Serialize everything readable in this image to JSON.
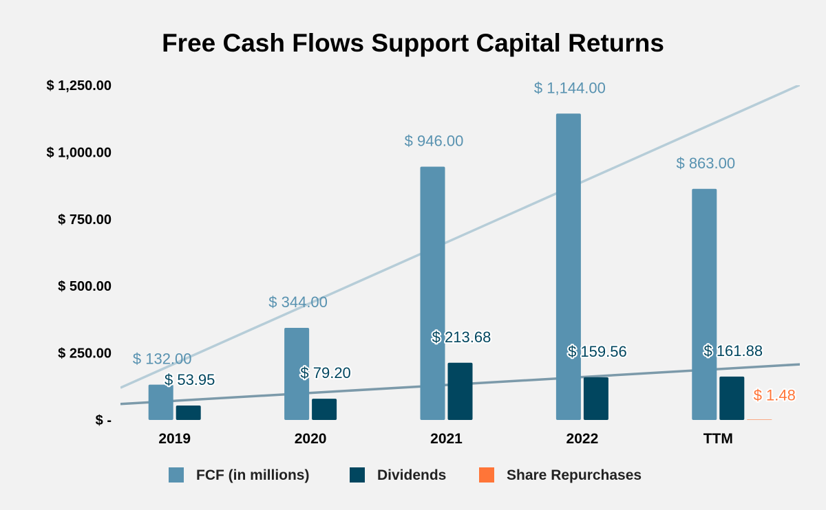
{
  "colors": {
    "background": "#f2f2f2",
    "fcf": "#5892b0",
    "dividends": "#01465f",
    "repurchases": "#ff7538",
    "fcf_trend": "#b6cdd8",
    "div_trend": "#7c9aaa"
  },
  "chart_data": {
    "type": "bar",
    "title": "Free Cash Flows Support Capital Returns",
    "categories": [
      "2019",
      "2020",
      "2021",
      "2022",
      "TTM"
    ],
    "ylim": [
      0,
      1250
    ],
    "yticks": [
      0,
      250,
      500,
      750,
      1000,
      1250
    ],
    "ytick_labels": [
      "$ -",
      "$ 250.00",
      "$ 500.00",
      "$ 750.00",
      "$ 1,000.00",
      "$ 1,250.00"
    ],
    "series": [
      {
        "name": "FCF (in millions)",
        "color": "#5892b0",
        "values": [
          132,
          344,
          946,
          1144,
          863
        ],
        "labels": [
          "$ 132.00",
          "$ 344.00",
          "$ 946.00",
          "$ 1,144.00",
          "$ 863.00"
        ]
      },
      {
        "name": "Dividends",
        "color": "#01465f",
        "values": [
          53.95,
          79.2,
          213.68,
          159.56,
          161.88
        ],
        "labels": [
          "$ 53.95",
          "$ 79.20",
          "$ 213.68",
          "$ 159.56",
          "$ 161.88"
        ]
      },
      {
        "name": "Share Repurchases",
        "color": "#ff7538",
        "values": [
          null,
          null,
          null,
          null,
          1.48
        ],
        "labels": [
          "",
          "",
          "",
          "",
          "$ 1.48"
        ]
      }
    ],
    "trendlines": [
      {
        "series": "FCF (in millions)",
        "color": "#b6cdd8"
      },
      {
        "series": "Dividends",
        "color": "#7c9aaa"
      }
    ],
    "legend": "bottom",
    "grid": false
  }
}
